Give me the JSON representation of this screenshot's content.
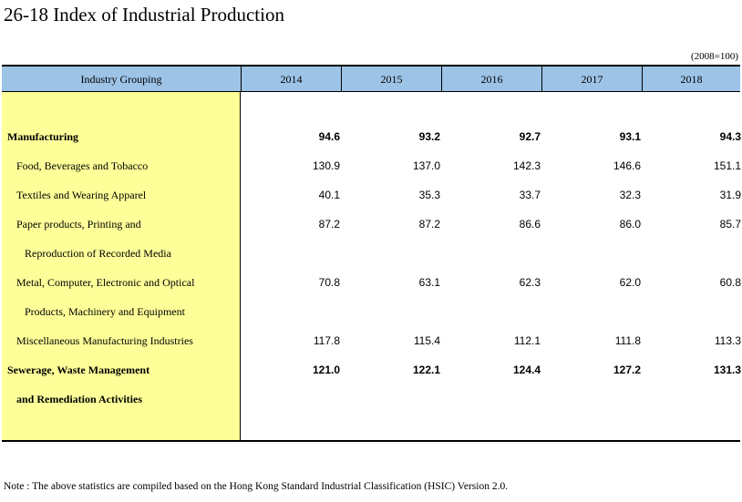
{
  "title": "26-18  Index of Industrial Production",
  "unit_note": "(2008=100)",
  "header": {
    "grouping": "Industry Grouping",
    "years": [
      "2014",
      "2015",
      "2016",
      "2017",
      "2018"
    ]
  },
  "rows": [
    {
      "label": "Manufacturing",
      "bold": true,
      "indent": 0,
      "values": [
        "94.6",
        "93.2",
        "92.7",
        "93.1",
        "94.3"
      ]
    },
    {
      "label": "Food, Beverages and Tobacco",
      "bold": false,
      "indent": 1,
      "values": [
        "130.9",
        "137.0",
        "142.3",
        "146.6",
        "151.1"
      ]
    },
    {
      "label": "Textiles and Wearing Apparel",
      "bold": false,
      "indent": 1,
      "values": [
        "40.1",
        "35.3",
        "33.7",
        "32.3",
        "31.9"
      ]
    },
    {
      "label": "Paper products, Printing and",
      "bold": false,
      "indent": 1,
      "values": [
        "87.2",
        "87.2",
        "86.6",
        "86.0",
        "85.7"
      ]
    },
    {
      "label": "Reproduction of Recorded Media",
      "bold": false,
      "indent": 2,
      "values": []
    },
    {
      "label": "Metal, Computer, Electronic and Optical",
      "bold": false,
      "indent": 1,
      "values": [
        "70.8",
        "63.1",
        "62.3",
        "62.0",
        "60.8"
      ]
    },
    {
      "label": "Products, Machinery and Equipment",
      "bold": false,
      "indent": 2,
      "values": []
    },
    {
      "label": "Miscellaneous Manufacturing Industries",
      "bold": false,
      "indent": 1,
      "values": [
        "117.8",
        "115.4",
        "112.1",
        "111.8",
        "113.3"
      ]
    },
    {
      "label": "Sewerage, Waste Management",
      "bold": true,
      "indent": 0,
      "values": [
        "121.0",
        "122.1",
        "124.4",
        "127.2",
        "131.3"
      ]
    },
    {
      "label": "and Remediation Activities",
      "bold": true,
      "indent": 1,
      "values": []
    }
  ],
  "footnote": "Note : The above statistics are compiled based on the Hong Kong Standard Industrial Classification (HSIC) Version 2.0."
}
